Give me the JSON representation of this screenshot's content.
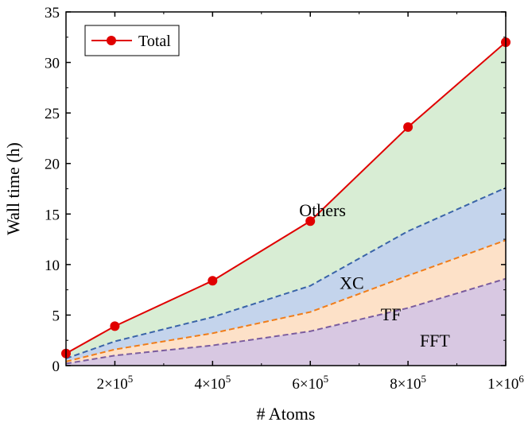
{
  "chart_data": {
    "type": "area",
    "xlabel": "# Atoms",
    "ylabel": "Wall time (h)",
    "xlim": [
      100000,
      1000000
    ],
    "ylim": [
      0,
      35
    ],
    "x": [
      100000,
      200000,
      400000,
      600000,
      800000,
      1000000
    ],
    "x_ticks": [
      {
        "value": 200000,
        "mant": "2×10",
        "exp": "5"
      },
      {
        "value": 400000,
        "mant": "4×10",
        "exp": "5"
      },
      {
        "value": 600000,
        "mant": "6×10",
        "exp": "5"
      },
      {
        "value": 800000,
        "mant": "8×10",
        "exp": "5"
      },
      {
        "value": 1000000,
        "mant": "1×10",
        "exp": "6"
      }
    ],
    "y_ticks": [
      0,
      5,
      10,
      15,
      20,
      25,
      30,
      35
    ],
    "grid": false,
    "stacked_bands": [
      {
        "label": "FFT",
        "color": "#d8c8e2",
        "line_color": "#7a5c9e",
        "label_at": [
          855000,
          1.9
        ]
      },
      {
        "label": "TF",
        "color": "#fde1c8",
        "line_color": "#f07d1a",
        "label_at": [
          765000,
          4.5
        ]
      },
      {
        "label": "XC",
        "color": "#c4d4ec",
        "line_color": "#3a64a8",
        "label_at": [
          685000,
          7.6
        ]
      },
      {
        "label": "Others",
        "color": "#d8edd4",
        "line_color": "#d81818",
        "label_at": [
          625000,
          14.8
        ]
      }
    ],
    "cumulative": [
      {
        "series": "FFT",
        "values": [
          0.2,
          1.0,
          2.0,
          3.4,
          5.7,
          8.6
        ]
      },
      {
        "series": "TF",
        "values": [
          0.4,
          1.6,
          3.2,
          5.3,
          8.9,
          12.4
        ]
      },
      {
        "series": "XC",
        "values": [
          0.7,
          2.4,
          4.8,
          7.9,
          13.3,
          17.6
        ]
      }
    ],
    "series": [
      {
        "name": "Total",
        "values": [
          1.2,
          3.9,
          8.4,
          14.3,
          23.6,
          32.0
        ],
        "color": "#e00000",
        "marker": "circle"
      }
    ],
    "legend": {
      "position": "top-left",
      "entries": [
        "Total"
      ]
    }
  }
}
